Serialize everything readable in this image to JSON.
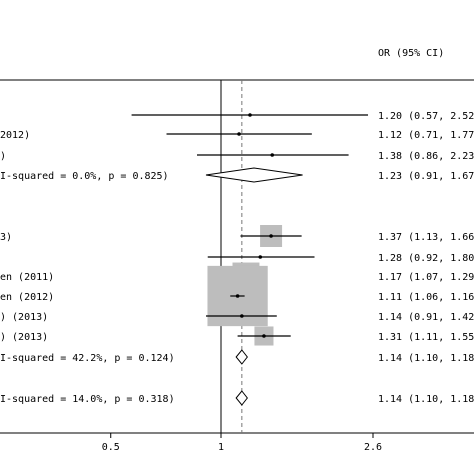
{
  "chart_data": {
    "type": "forest",
    "x_scale": "log",
    "header": {
      "ci_label": "OR (95% CI)"
    },
    "xticks": [
      {
        "value": 0.5,
        "label": "0.5"
      },
      {
        "value": 1,
        "label": "1"
      },
      {
        "value": 2.6,
        "label": "2.6"
      }
    ],
    "reference_line": 1,
    "overall_effect_line": 1.14,
    "studies": [
      {
        "label": "",
        "or": 1.2,
        "lower": 0.57,
        "upper": 2.52,
        "ci_text": "1.20 (0.57, 2.52)",
        "weight": 1
      },
      {
        "label": "2012)",
        "or": 1.12,
        "lower": 0.71,
        "upper": 1.77,
        "ci_text": "1.12 (0.71, 1.77)",
        "weight": 1
      },
      {
        "label": ")",
        "or": 1.38,
        "lower": 0.86,
        "upper": 2.23,
        "ci_text": "1.38 (0.86, 2.23)",
        "weight": 1
      },
      {
        "label": "I-squared = 0.0%, p = 0.825)",
        "or": 1.23,
        "lower": 0.91,
        "upper": 1.67,
        "ci_text": "1.23 (0.91, 1.67)",
        "diamond": true
      },
      {
        "label": "3)",
        "or": 1.37,
        "lower": 1.13,
        "upper": 1.66,
        "ci_text": "1.37 (1.13, 1.66)",
        "weight": 4
      },
      {
        "label": "",
        "or": 1.28,
        "lower": 0.92,
        "upper": 1.8,
        "ci_text": "1.28 (0.92, 1.80)",
        "weight": 1
      },
      {
        "label": "en (2011)",
        "or": 1.17,
        "lower": 1.07,
        "upper": 1.29,
        "ci_text": "1.17 (1.07, 1.29)",
        "weight": 6
      },
      {
        "label": "en (2012)",
        "or": 1.11,
        "lower": 1.06,
        "upper": 1.16,
        "ci_text": "1.11 (1.06, 1.16)",
        "weight": 30
      },
      {
        "label": ") (2013)",
        "or": 1.14,
        "lower": 0.91,
        "upper": 1.42,
        "ci_text": "1.14 (0.91, 1.42)",
        "weight": 1
      },
      {
        "label": ") (2013)",
        "or": 1.31,
        "lower": 1.11,
        "upper": 1.55,
        "ci_text": "1.31 (1.11, 1.55)",
        "weight": 3
      },
      {
        "label": "I-squared = 42.2%, p = 0.124)",
        "or": 1.14,
        "lower": 1.1,
        "upper": 1.18,
        "ci_text": "1.14 (1.10, 1.18)",
        "diamond": true
      },
      {
        "label": "I-squared = 14.0%, p = 0.318)",
        "or": 1.14,
        "lower": 1.1,
        "upper": 1.18,
        "ci_text": "1.14 (1.10, 1.18)",
        "diamond": true
      }
    ]
  }
}
